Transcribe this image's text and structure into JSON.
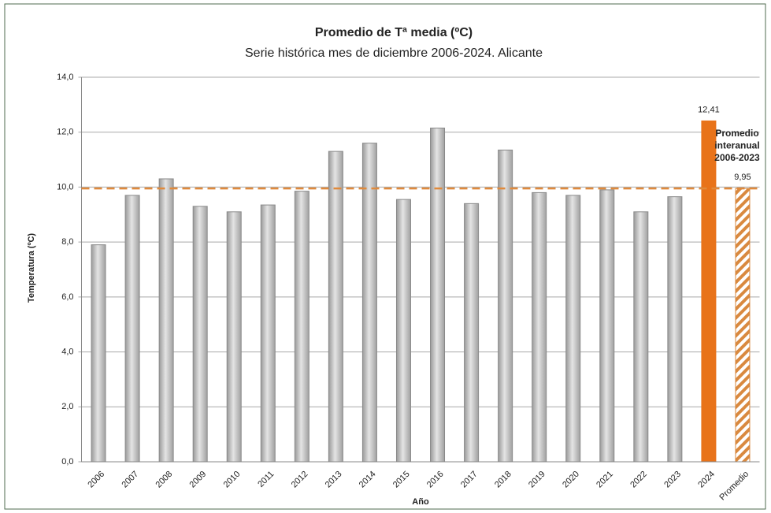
{
  "chart_data": {
    "type": "bar",
    "title": "Promedio de Tª media (ºC)",
    "subtitle": "Serie histórica mes de diciembre 2006-2024. Alicante",
    "y_label": "Temperatura (ºC)",
    "x_label": "Año",
    "categories": [
      "2006",
      "2007",
      "2008",
      "2009",
      "2010",
      "2011",
      "2012",
      "2013",
      "2014",
      "2015",
      "2016",
      "2017",
      "2018",
      "2019",
      "2020",
      "2021",
      "2022",
      "2023",
      "2024",
      "Promedio"
    ],
    "values": [
      7.9,
      9.7,
      10.3,
      9.3,
      9.1,
      9.35,
      9.85,
      11.3,
      11.6,
      9.55,
      12.15,
      9.4,
      11.35,
      9.8,
      9.7,
      9.9,
      9.1,
      9.65,
      12.41,
      9.95
    ],
    "value_labels": [
      null,
      null,
      null,
      null,
      null,
      null,
      null,
      null,
      null,
      null,
      null,
      null,
      null,
      null,
      null,
      null,
      null,
      null,
      "12,41",
      "9,95"
    ],
    "colors": [
      "#bdbdbd",
      "#bdbdbd",
      "#bdbdbd",
      "#bdbdbd",
      "#bdbdbd",
      "#bdbdbd",
      "#bdbdbd",
      "#bdbdbd",
      "#bdbdbd",
      "#bdbdbd",
      "#bdbdbd",
      "#bdbdbd",
      "#bdbdbd",
      "#bdbdbd",
      "#bdbdbd",
      "#bdbdbd",
      "#bdbdbd",
      "#bdbdbd",
      "#e8731a",
      "#d9893f"
    ],
    "bar_styles": [
      "solid",
      "solid",
      "solid",
      "solid",
      "solid",
      "solid",
      "solid",
      "solid",
      "solid",
      "solid",
      "solid",
      "solid",
      "solid",
      "solid",
      "solid",
      "solid",
      "solid",
      "solid",
      "solid",
      "hatched"
    ],
    "reference_line": {
      "value": 9.95,
      "label_lines": [
        "Promedio",
        "interanual",
        "2006-2023"
      ],
      "color": "#e08a3c"
    },
    "ylim": [
      0,
      14
    ],
    "yticks": [
      {
        "value": 0,
        "label": "0,0"
      },
      {
        "value": 2,
        "label": "2,0"
      },
      {
        "value": 4,
        "label": "4,0"
      },
      {
        "value": 6,
        "label": "6,0"
      },
      {
        "value": 8,
        "label": "8,0"
      },
      {
        "value": 10,
        "label": "10,0"
      },
      {
        "value": 12,
        "label": "12,0"
      },
      {
        "value": 14,
        "label": "14,0"
      }
    ],
    "grid": true
  }
}
